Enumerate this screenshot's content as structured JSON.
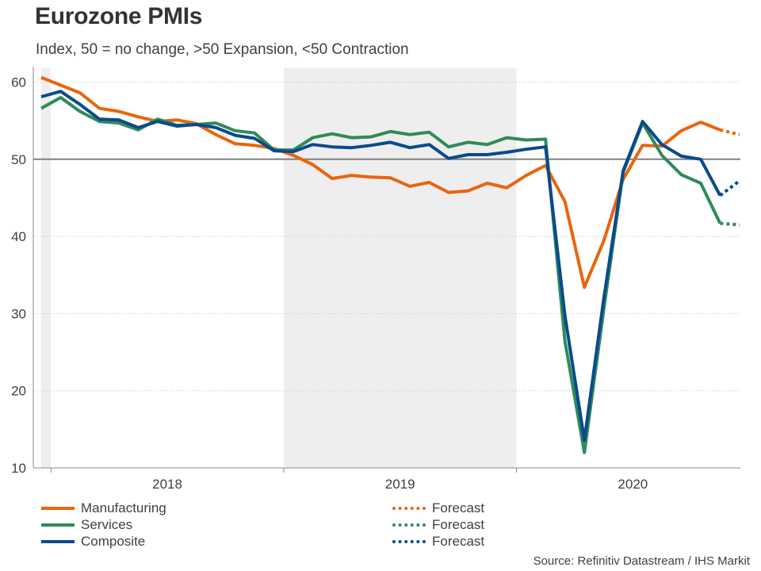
{
  "title": "Eurozone PMIs",
  "subtitle": "Index, 50 = no change, >50 Expansion, <50 Contraction",
  "source": "Source: Refinitiv Datastream / IHS Markit",
  "colors": {
    "manufacturing": "#e8650e",
    "services": "#2e8b57",
    "composite": "#0a4a8c",
    "reference": "#808080",
    "shade": "#eeeeee",
    "grid": "#d8d8d8"
  },
  "legend": {
    "manufacturing": "Manufacturing",
    "services": "Services",
    "composite": "Composite",
    "forecast_manufacturing": "Forecast",
    "forecast_services": "Forecast",
    "forecast_composite": "Forecast"
  },
  "chart_data": {
    "type": "line",
    "title": "Eurozone PMIs",
    "subtitle": "Index, 50 = no change, >50 Expansion, <50 Contraction",
    "xlabel": "",
    "ylabel": "",
    "ylim": [
      10,
      62
    ],
    "yticks": [
      10,
      20,
      30,
      40,
      50,
      60
    ],
    "reference_line": 50,
    "grid": true,
    "x_start": "2017-12",
    "x_end": "2020-12",
    "x_categories": [
      "2017-12",
      "2018-01",
      "2018-02",
      "2018-03",
      "2018-04",
      "2018-05",
      "2018-06",
      "2018-07",
      "2018-08",
      "2018-09",
      "2018-10",
      "2018-11",
      "2018-12",
      "2019-01",
      "2019-02",
      "2019-03",
      "2019-04",
      "2019-05",
      "2019-06",
      "2019-07",
      "2019-08",
      "2019-09",
      "2019-10",
      "2019-11",
      "2019-12",
      "2020-01",
      "2020-02",
      "2020-03",
      "2020-04",
      "2020-05",
      "2020-06",
      "2020-07",
      "2020-08",
      "2020-09",
      "2020-10",
      "2020-11",
      "2020-12"
    ],
    "year_labels": [
      {
        "label": "2018",
        "center_index": 6.5
      },
      {
        "label": "2019",
        "center_index": 18.5
      },
      {
        "label": "2020",
        "center_index": 30.5
      }
    ],
    "year_boundaries": [
      0.5,
      12.5,
      24.5
    ],
    "shaded_regions": [
      [
        0,
        0.5
      ],
      [
        12.5,
        24.5
      ]
    ],
    "series": [
      {
        "name": "Manufacturing",
        "key": "manufacturing",
        "start_index": 0,
        "values": [
          60.6,
          59.6,
          58.6,
          56.6,
          56.2,
          55.5,
          54.9,
          55.1,
          54.6,
          53.2,
          52.0,
          51.8,
          51.4,
          50.5,
          49.3,
          47.5,
          47.9,
          47.7,
          47.6,
          46.5,
          47.0,
          45.7,
          45.9,
          46.9,
          46.3,
          47.9,
          49.2,
          44.5,
          33.4,
          39.4,
          47.4,
          51.8,
          51.7,
          53.7,
          54.8,
          53.8
        ]
      },
      {
        "name": "Services",
        "key": "services",
        "start_index": 0,
        "values": [
          56.6,
          58.0,
          56.2,
          54.9,
          54.7,
          53.8,
          55.2,
          54.4,
          54.5,
          54.7,
          53.7,
          53.4,
          51.2,
          51.2,
          52.8,
          53.3,
          52.8,
          52.9,
          53.6,
          53.2,
          53.5,
          51.6,
          52.2,
          51.9,
          52.8,
          52.5,
          52.6,
          26.4,
          12.0,
          30.5,
          48.3,
          54.7,
          50.5,
          48.0,
          46.9,
          41.7
        ]
      },
      {
        "name": "Composite",
        "key": "composite",
        "start_index": 0,
        "values": [
          58.1,
          58.8,
          57.1,
          55.2,
          55.1,
          54.1,
          54.9,
          54.3,
          54.5,
          54.1,
          53.1,
          52.7,
          51.1,
          51.0,
          51.9,
          51.6,
          51.5,
          51.8,
          52.2,
          51.5,
          51.9,
          50.1,
          50.6,
          50.6,
          50.9,
          51.3,
          51.6,
          29.7,
          13.6,
          31.9,
          48.5,
          54.9,
          51.9,
          50.4,
          50.0,
          45.3
        ]
      }
    ],
    "forecast_series": [
      {
        "name": "Forecast",
        "key": "manufacturing",
        "start_index": 35,
        "values": [
          53.8,
          53.2
        ]
      },
      {
        "name": "Forecast",
        "key": "services",
        "start_index": 35,
        "values": [
          41.7,
          41.5
        ]
      },
      {
        "name": "Forecast",
        "key": "composite",
        "start_index": 35,
        "values": [
          45.3,
          47.2
        ]
      }
    ]
  }
}
